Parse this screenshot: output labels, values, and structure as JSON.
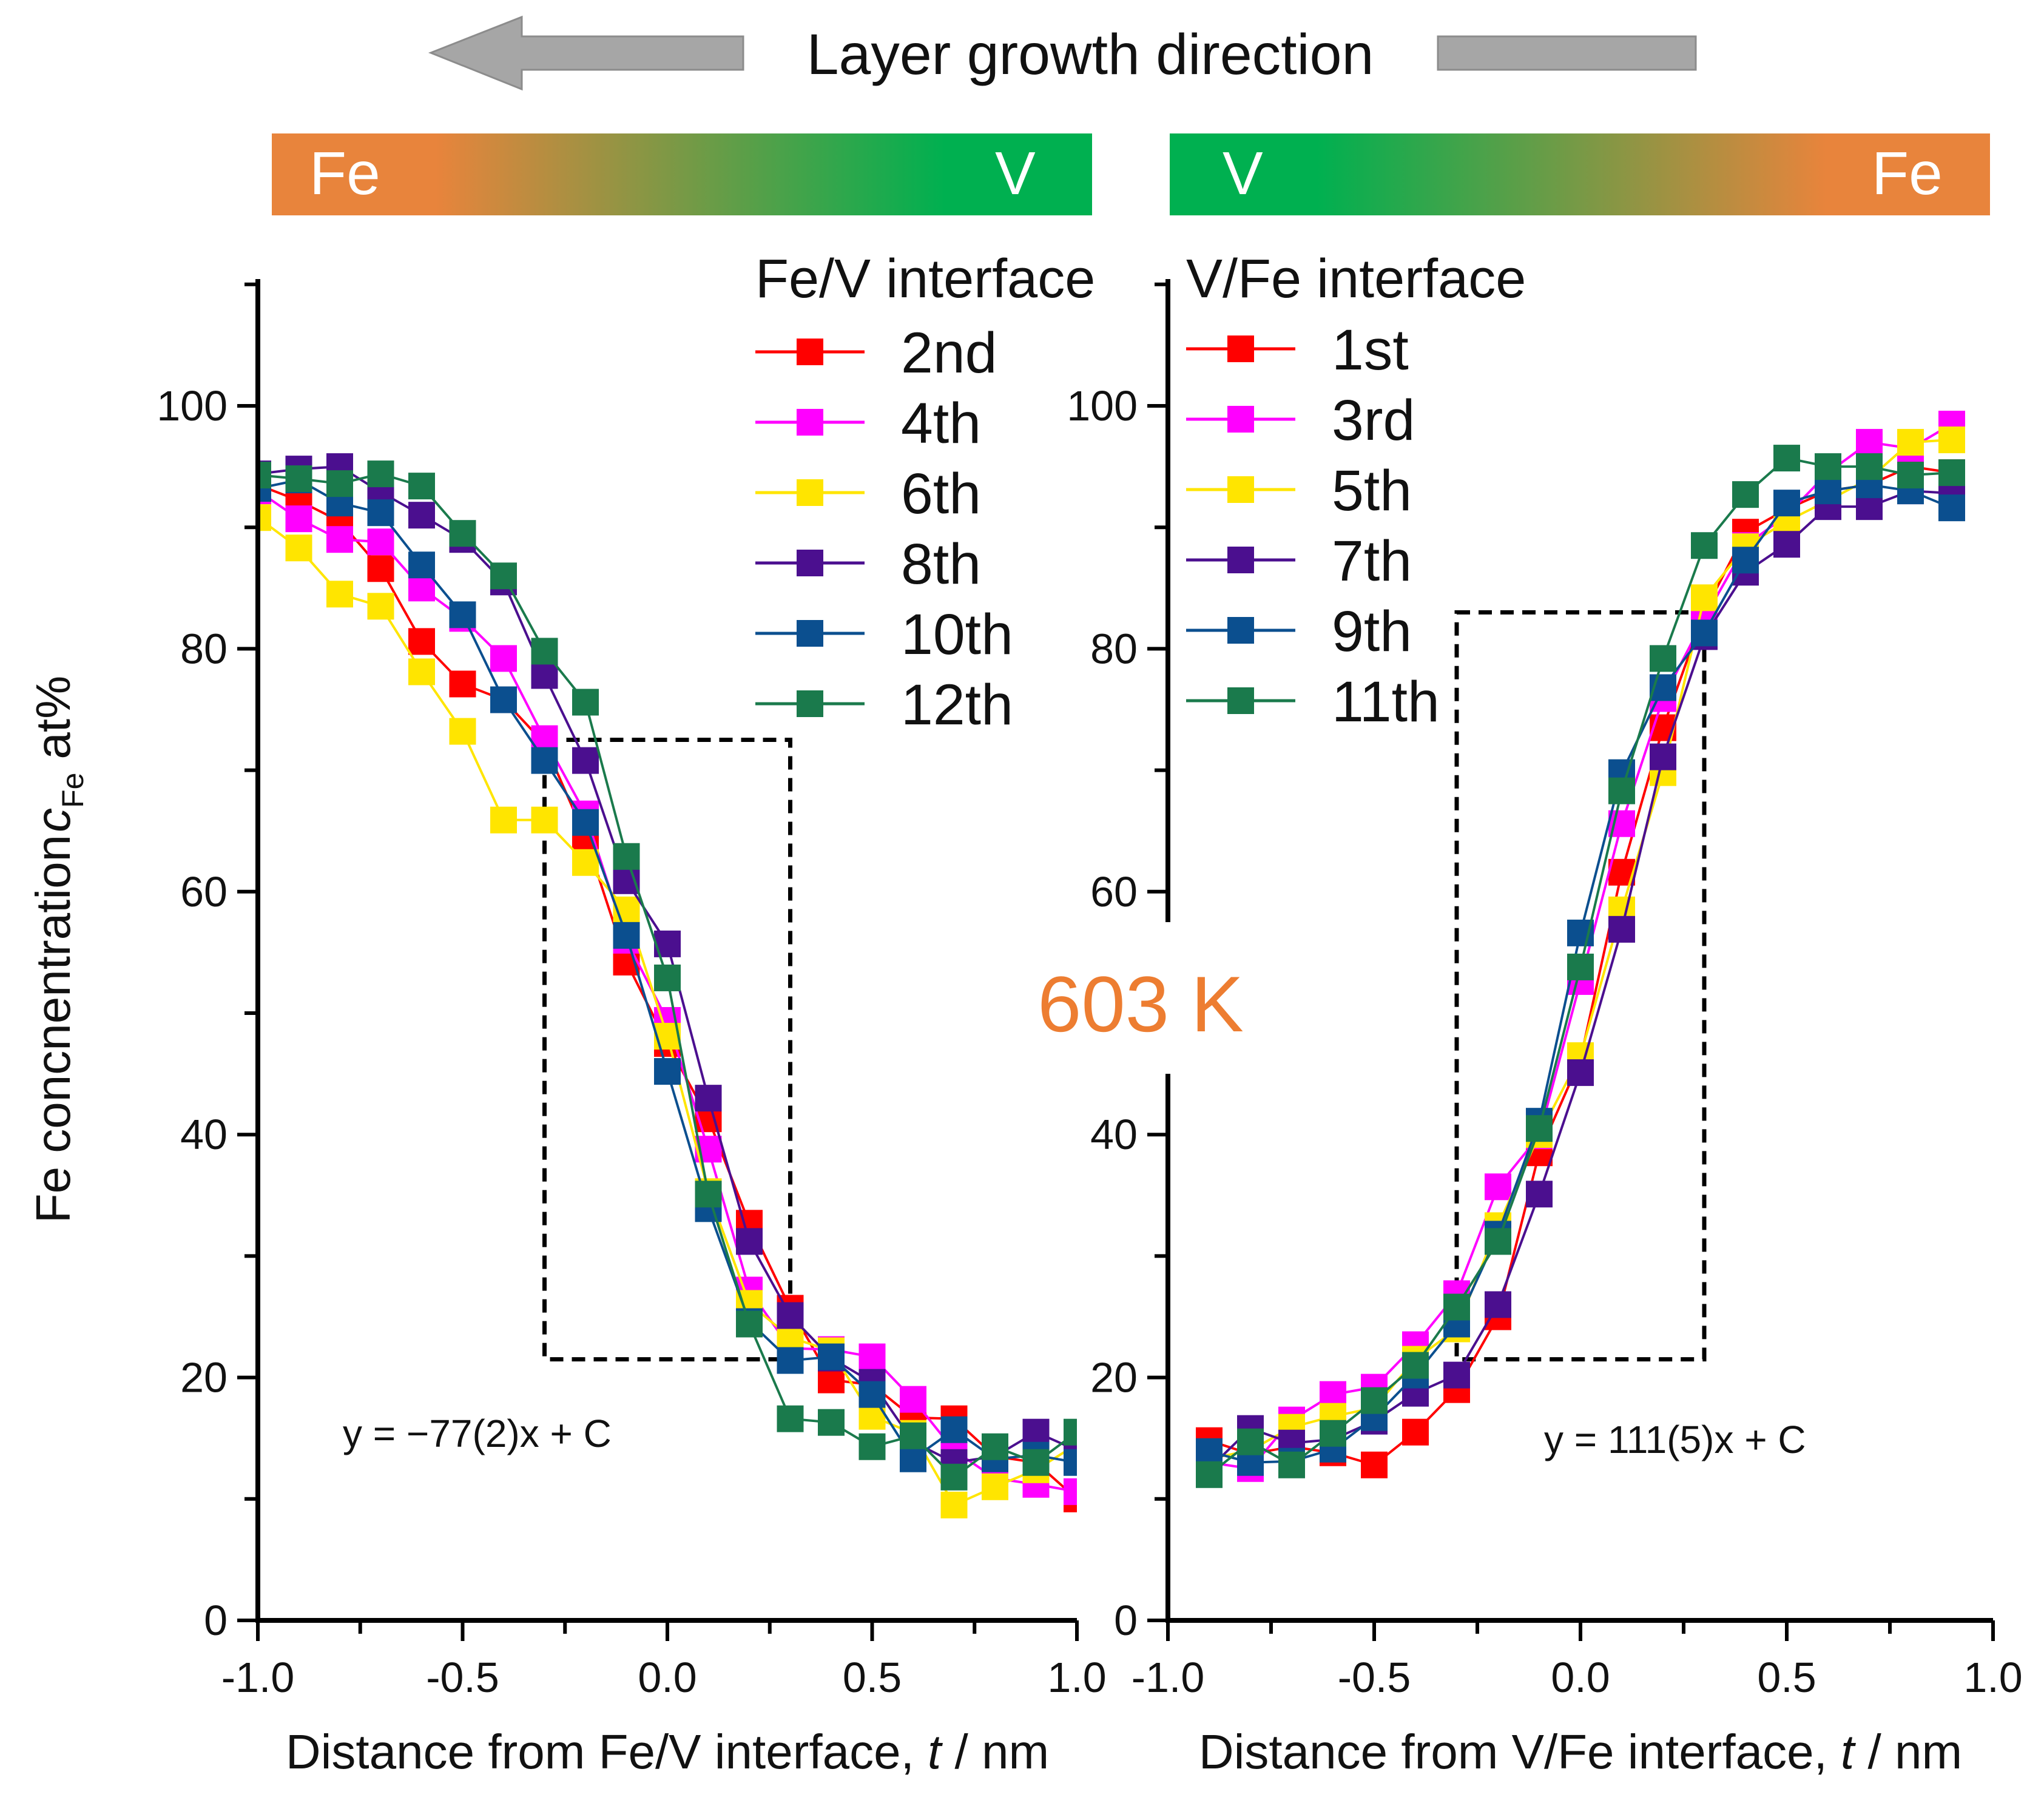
{
  "header": {
    "growth_label": "Layer growth direction"
  },
  "bars": {
    "left": {
      "start": "Fe",
      "end": "V",
      "start_color": "#E8843C",
      "end_color": "#00B050"
    },
    "right": {
      "start": "V",
      "end": "Fe",
      "start_color": "#00B050",
      "end_color": "#E8843C"
    }
  },
  "temperature_label": "603 K",
  "colors": {
    "arrow": "#A6A6A6",
    "temperature": "#ED7D31",
    "series": [
      "#FF0000",
      "#FF00FF",
      "#FFE500",
      "#4B0F8F",
      "#0B4F8F",
      "#1A7A4C"
    ]
  },
  "chart_data": [
    {
      "type": "line",
      "panel": "left",
      "ylabel": "Fe concnentration c_Fe at%",
      "ylabel_main": "Fe concnentration",
      "ylabel_var": "c",
      "ylabel_sub": "Fe",
      "ylabel_unit": "at%",
      "xlabel": "Distance from Fe/V interface, t / nm",
      "xlabel_pre": "Distance from Fe/V interface,",
      "xlabel_var": "t",
      "xlabel_post": "/ nm",
      "xlim": [
        -1.0,
        1.0
      ],
      "ylim": [
        0,
        110
      ],
      "xticks": [
        "-1.0",
        "-0.5",
        "0.0",
        "0.5",
        "1.0"
      ],
      "yticks": [
        "0",
        "20",
        "40",
        "60",
        "80",
        "100"
      ],
      "legend_title": "Fe/V interface",
      "fit_equation": "y = −77(2)x + C",
      "fit_box": {
        "x": [
          -0.3,
          0.3
        ],
        "y": [
          21.5,
          72.5
        ]
      },
      "x": [
        -1.0,
        -0.9,
        -0.8,
        -0.7,
        -0.6,
        -0.5,
        -0.4,
        -0.3,
        -0.2,
        -0.1,
        0.0,
        0.1,
        0.2,
        0.3,
        0.4,
        0.5,
        0.6,
        0.7,
        0.8,
        0.9,
        1.0
      ],
      "series": [
        {
          "name": "2nd",
          "values": [
            93.5,
            92.2,
            90.5,
            86.6,
            80.6,
            77.1,
            75.8,
            72.2,
            64.5,
            54.2,
            47.5,
            41.3,
            32.7,
            25.7,
            19.8,
            19.4,
            16.7,
            16.6,
            13.5,
            13.0,
            10.0
          ]
        },
        {
          "name": "4th",
          "values": [
            93.0,
            90.7,
            89.0,
            88.8,
            85.0,
            82.5,
            79.2,
            72.6,
            66.4,
            56.0,
            49.4,
            38.8,
            27.2,
            22.4,
            22.3,
            21.7,
            18.2,
            14.0,
            11.7,
            11.2,
            10.6
          ]
        },
        {
          "name": "6th",
          "values": [
            90.8,
            88.3,
            84.5,
            83.5,
            78.1,
            73.2,
            65.9,
            65.9,
            62.4,
            58.5,
            48.1,
            35.3,
            26.1,
            23.3,
            22.2,
            16.8,
            15.4,
            9.5,
            11.0,
            12.4,
            14.5
          ]
        },
        {
          "name": "8th",
          "values": [
            94.4,
            94.8,
            95.0,
            92.9,
            91.0,
            89.0,
            85.5,
            77.8,
            70.8,
            60.9,
            55.7,
            43.0,
            31.2,
            25.1,
            21.6,
            19.6,
            14.7,
            13.0,
            13.5,
            15.5,
            14.0
          ]
        },
        {
          "name": "10th",
          "values": [
            93.2,
            93.9,
            92.0,
            91.2,
            86.9,
            82.8,
            75.8,
            70.8,
            65.7,
            56.4,
            45.2,
            33.9,
            24.6,
            21.4,
            21.7,
            18.6,
            13.3,
            15.7,
            13.3,
            13.6,
            13.0
          ]
        },
        {
          "name": "12th",
          "values": [
            94.3,
            94.0,
            93.6,
            94.4,
            93.4,
            89.5,
            86.0,
            79.8,
            75.6,
            62.9,
            52.9,
            35.1,
            24.4,
            16.6,
            16.3,
            14.3,
            15.2,
            11.8,
            14.3,
            13.0,
            15.5
          ]
        }
      ]
    },
    {
      "type": "line",
      "panel": "right",
      "xlabel": "Distance from V/Fe interface, t / nm",
      "xlabel_pre": "Distance from V/Fe interface,",
      "xlabel_var": "t",
      "xlabel_post": "/ nm",
      "xlim": [
        -1.0,
        1.0
      ],
      "ylim": [
        0,
        110
      ],
      "xticks": [
        "-1.0",
        "-0.5",
        "0.0",
        "0.5",
        "1.0"
      ],
      "yticks": [
        "0",
        "20",
        "40",
        "60",
        "80",
        "100"
      ],
      "legend_title": "V/Fe interface",
      "fit_equation": "y = 111(5)x + C",
      "fit_box": {
        "x": [
          -0.3,
          0.3
        ],
        "y": [
          21.5,
          83.0
        ]
      },
      "x": [
        -0.9,
        -0.8,
        -0.7,
        -0.6,
        -0.5,
        -0.4,
        -0.3,
        -0.2,
        -0.1,
        0.0,
        0.1,
        0.2,
        0.3,
        0.4,
        0.5,
        0.6,
        0.7,
        0.8,
        0.9
      ],
      "series": [
        {
          "name": "1st",
          "values": [
            14.8,
            13.7,
            14.3,
            13.8,
            12.8,
            15.5,
            19.0,
            25.0,
            38.5,
            46.2,
            61.6,
            73.5,
            83.0,
            89.6,
            91.5,
            93.0,
            93.5,
            95.0,
            94.5
          ]
        },
        {
          "name": "3rd",
          "values": [
            13.0,
            12.5,
            16.5,
            18.6,
            19.2,
            22.7,
            26.9,
            35.7,
            39.9,
            52.6,
            65.6,
            75.9,
            82.5,
            88.5,
            91.0,
            94.5,
            97.0,
            96.5,
            98.5
          ]
        },
        {
          "name": "5th",
          "values": [
            13.3,
            14.0,
            15.9,
            16.8,
            17.5,
            21.5,
            24.0,
            32.5,
            40.0,
            46.5,
            58.5,
            69.8,
            84.2,
            88.4,
            90.5,
            92.2,
            94.0,
            97.0,
            97.2
          ]
        },
        {
          "name": "7th",
          "values": [
            12.5,
            15.8,
            14.6,
            14.9,
            16.4,
            18.7,
            20.2,
            26.0,
            35.1,
            45.1,
            56.9,
            71.1,
            81.0,
            86.3,
            88.6,
            91.7,
            91.7,
            93.0,
            92.8
          ]
        },
        {
          "name": "9th",
          "values": [
            13.9,
            13.0,
            13.1,
            14.1,
            16.7,
            20.2,
            24.4,
            31.8,
            41.1,
            56.6,
            69.8,
            76.8,
            81.3,
            87.3,
            92.0,
            93.0,
            93.5,
            93.0,
            91.6
          ]
        },
        {
          "name": "11th",
          "values": [
            12.0,
            14.7,
            12.8,
            15.4,
            18.1,
            21.0,
            25.8,
            31.2,
            40.5,
            53.8,
            68.3,
            79.2,
            88.5,
            92.7,
            95.7,
            95.0,
            95.0,
            94.3,
            94.5
          ]
        }
      ]
    }
  ]
}
